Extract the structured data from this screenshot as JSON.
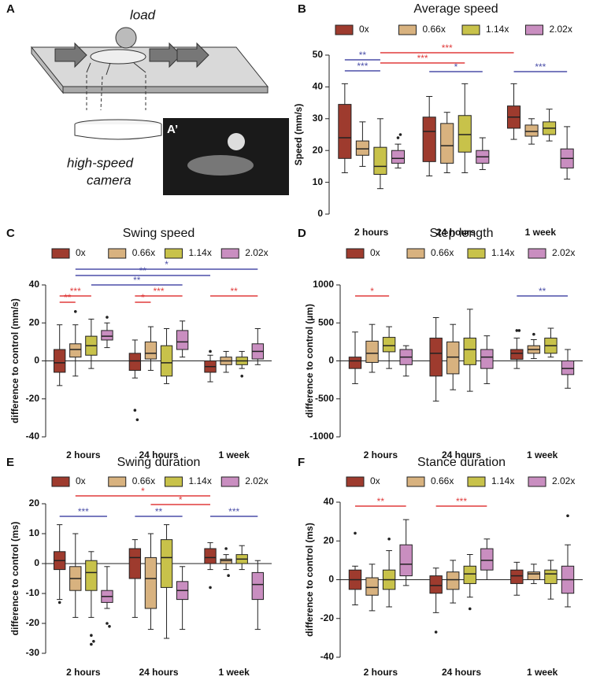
{
  "figure": {
    "panel_a": {
      "letter": "A",
      "load": "load",
      "camera": [
        "high-speed",
        "camera"
      ],
      "inset_label": "A’"
    }
  },
  "chart_data": [
    {
      "letter": "B",
      "type": "box",
      "title": "Average speed",
      "y_label": "Speed (mm/s)",
      "categories": [
        "2 hours",
        "24 hours",
        "1 week"
      ],
      "ylim": [
        0,
        50
      ],
      "yticks": [
        0,
        10,
        20,
        30,
        40,
        50
      ],
      "zero_line": false,
      "series": [
        {
          "name": "0x",
          "color": "#9e3b2e",
          "values": [
            [
              13,
              17.5,
              24,
              34.5,
              41
            ],
            [
              12,
              16.5,
              26,
              30.5,
              37
            ],
            [
              23.5,
              27,
              30.5,
              34,
              41
            ]
          ],
          "outliers": [
            [],
            [],
            []
          ]
        },
        {
          "name": "0.66x",
          "color": "#d8b27f",
          "values": [
            [
              15,
              18.5,
              20.5,
              23,
              29
            ],
            [
              13,
              16,
              21.5,
              28.5,
              32
            ],
            [
              22,
              24.5,
              26,
              28,
              30
            ]
          ],
          "outliers": [
            [],
            [],
            []
          ]
        },
        {
          "name": "1.14x",
          "color": "#c8c24a",
          "values": [
            [
              8,
              12.5,
              15,
              21,
              30
            ],
            [
              13,
              19.5,
              25,
              31,
              41
            ],
            [
              23,
              25,
              27,
              29,
              33
            ]
          ],
          "outliers": [
            [],
            [],
            []
          ]
        },
        {
          "name": "2.02x",
          "color": "#c98ec0",
          "values": [
            [
              14.5,
              16,
              17.5,
              20,
              22
            ],
            [
              14,
              16,
              18,
              20,
              24
            ],
            [
              11,
              14.5,
              17.5,
              20.5,
              27.5
            ]
          ],
          "outliers": [
            [
              24,
              25
            ],
            [],
            []
          ]
        }
      ],
      "annotations": [
        {
          "label": "***",
          "color": "#e03b3b"
        },
        {
          "label": "**",
          "color": "#4b4fa8"
        },
        {
          "label": "***",
          "color": "#e03b3b"
        },
        {
          "label": "***",
          "color": "#4b4fa8"
        },
        {
          "label": "*",
          "color": "#4b4fa8"
        },
        {
          "label": "***",
          "color": "#4b4fa8"
        }
      ]
    },
    {
      "letter": "C",
      "type": "box",
      "title": "Swing speed",
      "y_label": "difference to control (mm/s)",
      "categories": [
        "2 hours",
        "24 hours",
        "1 week"
      ],
      "ylim": [
        -40,
        40
      ],
      "yticks": [
        -40,
        -20,
        0,
        20,
        40
      ],
      "zero_line": true,
      "series": [
        {
          "name": "0x",
          "color": "#9e3b2e",
          "values": [
            [
              -13,
              -6,
              -1,
              6,
              19
            ],
            [
              -9,
              -5,
              0,
              4,
              11
            ],
            [
              -11,
              -6,
              -3,
              0,
              3
            ]
          ],
          "outliers": [
            [],
            [
              -26,
              -31
            ],
            [
              5
            ]
          ]
        },
        {
          "name": "0.66x",
          "color": "#d8b27f",
          "values": [
            [
              -8,
              2,
              6,
              9,
              19
            ],
            [
              -5,
              1,
              4,
              10,
              18
            ],
            [
              -6,
              -2,
              0,
              2,
              5
            ]
          ],
          "outliers": [
            [
              26
            ],
            [],
            []
          ]
        },
        {
          "name": "1.14x",
          "color": "#c8c24a",
          "values": [
            [
              -4,
              3,
              8,
              13,
              22
            ],
            [
              -12,
              -8,
              -1,
              8,
              17
            ],
            [
              -4,
              -2,
              0,
              2,
              5
            ]
          ],
          "outliers": [
            [],
            [],
            [
              -8
            ]
          ]
        },
        {
          "name": "2.02x",
          "color": "#c98ec0",
          "values": [
            [
              7,
              11,
              13,
              16,
              20
            ],
            [
              2,
              6,
              10,
              16,
              21
            ],
            [
              -2,
              1,
              5,
              9,
              17
            ]
          ],
          "outliers": [
            [
              23
            ],
            [],
            []
          ]
        }
      ],
      "annotations": [
        {
          "label": "*",
          "color": "#4b4fa8"
        },
        {
          "label": "**",
          "color": "#4b4fa8"
        },
        {
          "label": "**",
          "color": "#4b4fa8"
        },
        {
          "label": "***",
          "color": "#e03b3b"
        },
        {
          "label": "**",
          "color": "#e03b3b"
        },
        {
          "label": "*",
          "color": "#e03b3b"
        },
        {
          "label": "***",
          "color": "#e03b3b"
        },
        {
          "label": "**",
          "color": "#e03b3b"
        }
      ]
    },
    {
      "letter": "D",
      "type": "box",
      "title": "Step length",
      "y_label": "difference to control (µm)",
      "categories": [
        "2 hours",
        "24 hours",
        "1 week"
      ],
      "ylim": [
        -1000,
        1000
      ],
      "yticks": [
        -1000,
        -500,
        0,
        500,
        1000
      ],
      "zero_line": true,
      "series": [
        {
          "name": "0x",
          "color": "#9e3b2e",
          "values": [
            [
              -300,
              -100,
              0,
              50,
              380
            ],
            [
              -530,
              -200,
              100,
              300,
              570
            ],
            [
              -100,
              20,
              100,
              150,
              300
            ]
          ],
          "outliers": [
            [],
            [],
            [
              400,
              400
            ]
          ]
        },
        {
          "name": "0.66x",
          "color": "#d8b27f",
          "values": [
            [
              -150,
              -20,
              100,
              260,
              480
            ],
            [
              -380,
              -170,
              50,
              250,
              480
            ],
            [
              30,
              100,
              150,
              200,
              280
            ]
          ],
          "outliers": [
            [],
            [],
            [
              350
            ]
          ]
        },
        {
          "name": "1.14x",
          "color": "#c8c24a",
          "values": [
            [
              -100,
              120,
              200,
              310,
              450
            ],
            [
              -400,
              -50,
              150,
              300,
              680
            ],
            [
              50,
              100,
              200,
              300,
              430
            ]
          ],
          "outliers": [
            [],
            [],
            []
          ]
        },
        {
          "name": "2.02x",
          "color": "#c98ec0",
          "values": [
            [
              -200,
              -50,
              50,
              150,
              200
            ],
            [
              -300,
              -100,
              50,
              150,
              330
            ],
            [
              -360,
              -180,
              -100,
              0,
              150
            ]
          ],
          "outliers": [
            [],
            [],
            []
          ]
        }
      ],
      "annotations": [
        {
          "label": "*",
          "color": "#e03b3b"
        },
        {
          "label": "**",
          "color": "#4b4fa8"
        }
      ]
    },
    {
      "letter": "E",
      "type": "box",
      "title": "Swing duration",
      "y_label": "difference to control (ms)",
      "categories": [
        "2 hours",
        "24 hours",
        "1 week"
      ],
      "ylim": [
        -30,
        20
      ],
      "yticks": [
        -30,
        -20,
        -10,
        0,
        10,
        20
      ],
      "zero_line": true,
      "series": [
        {
          "name": "0x",
          "color": "#9e3b2e",
          "values": [
            [
              -12,
              -2,
              1,
              4,
              13
            ],
            [
              -18,
              -5,
              2,
              5,
              8
            ],
            [
              -2,
              0,
              2,
              5,
              7
            ]
          ],
          "outliers": [
            [
              -13
            ],
            [],
            [
              -8
            ]
          ]
        },
        {
          "name": "0.66x",
          "color": "#d8b27f",
          "values": [
            [
              -18,
              -9,
              -5,
              -1,
              10
            ],
            [
              -22,
              -15,
              -5,
              2,
              10
            ],
            [
              -2,
              0,
              1,
              1.5,
              3
            ]
          ],
          "outliers": [
            [],
            [],
            [
              5,
              -4
            ]
          ]
        },
        {
          "name": "1.14x",
          "color": "#c8c24a",
          "values": [
            [
              -18,
              -9,
              -3,
              1,
              4
            ],
            [
              -25,
              -8,
              2,
              8,
              13
            ],
            [
              -2,
              0,
              1.5,
              3,
              6
            ]
          ],
          "outliers": [
            [
              -24,
              -26,
              -27
            ],
            [],
            []
          ]
        },
        {
          "name": "2.02x",
          "color": "#c98ec0",
          "values": [
            [
              -15,
              -13,
              -11,
              -9,
              -1
            ],
            [
              -22,
              -12,
              -9,
              -6,
              -1
            ],
            [
              -22,
              -12,
              -7,
              -3,
              1
            ]
          ],
          "outliers": [
            [
              -20,
              -21
            ],
            [],
            []
          ]
        }
      ],
      "annotations": [
        {
          "label": "*",
          "color": "#e03b3b"
        },
        {
          "label": "*",
          "color": "#e03b3b"
        },
        {
          "label": "***",
          "color": "#4b4fa8"
        },
        {
          "label": "**",
          "color": "#4b4fa8"
        },
        {
          "label": "***",
          "color": "#4b4fa8"
        }
      ]
    },
    {
      "letter": "F",
      "type": "box",
      "title": "Stance duration",
      "y_label": "difference to control (ms)",
      "categories": [
        "2 hours",
        "24 hours",
        "1 week"
      ],
      "ylim": [
        -40,
        40
      ],
      "yticks": [
        -40,
        -20,
        0,
        20,
        40
      ],
      "zero_line": true,
      "series": [
        {
          "name": "0x",
          "color": "#9e3b2e",
          "values": [
            [
              -13,
              -5,
              0,
              5,
              7
            ],
            [
              -17,
              -7,
              -3,
              2,
              6
            ],
            [
              -8,
              -2,
              2,
              5,
              9
            ]
          ],
          "outliers": [
            [
              24
            ],
            [
              -27
            ],
            []
          ]
        },
        {
          "name": "0.66x",
          "color": "#d8b27f",
          "values": [
            [
              -16,
              -8,
              -4,
              1,
              8
            ],
            [
              -12,
              -5,
              0,
              4,
              10
            ],
            [
              -2,
              0,
              3,
              4,
              8
            ]
          ],
          "outliers": [
            [],
            [],
            []
          ]
        },
        {
          "name": "1.14x",
          "color": "#c8c24a",
          "values": [
            [
              -14,
              -5,
              0,
              5,
              15
            ],
            [
              -9,
              -2,
              3,
              7,
              13
            ],
            [
              -10,
              -2,
              3,
              5,
              10
            ]
          ],
          "outliers": [
            [
              21
            ],
            [
              -15
            ],
            []
          ]
        },
        {
          "name": "2.02x",
          "color": "#c98ec0",
          "values": [
            [
              -3,
              2,
              8,
              18,
              31
            ],
            [
              0,
              5,
              10,
              16,
              21
            ],
            [
              -14,
              -7,
              0,
              7,
              18
            ]
          ],
          "outliers": [
            [],
            [],
            [
              33
            ]
          ]
        }
      ],
      "annotations": [
        {
          "label": "**",
          "color": "#e03b3b"
        },
        {
          "label": "***",
          "color": "#e03b3b"
        }
      ]
    }
  ]
}
